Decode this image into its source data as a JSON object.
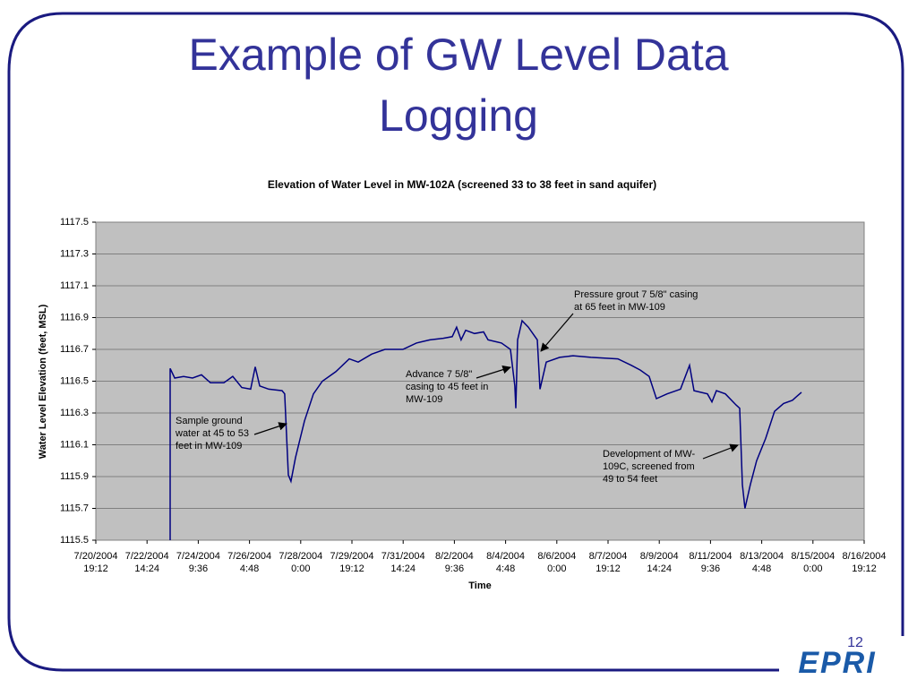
{
  "title": "Example of GW Level Data Logging",
  "page_number": "12",
  "logo": "EPRI",
  "chart_data": {
    "type": "line",
    "title": "Elevation of Water Level in MW-102A (screened 33 to 38 feet in sand aquifer)",
    "x_label": "Time",
    "y_label": "Water Level Elevation (feet, MSL)",
    "x": [
      "2004-07-23T09:54",
      "2004-07-23T09:54",
      "2004-07-23T13:42",
      "2004-07-23T21:12",
      "2004-07-24T04:48",
      "2004-07-24T12:18",
      "2004-07-24T19:54",
      "2004-07-25T07:12",
      "2004-07-25T14:42",
      "2004-07-25T22:18",
      "2004-07-26T05:48",
      "2004-07-26T09:36",
      "2004-07-26T13:24",
      "2004-07-26T21:00",
      "2004-07-27T08:18",
      "2004-07-27T10:30",
      "2004-07-27T13:36",
      "2004-07-27T15:48",
      "2004-07-27T19:36",
      "2004-07-28T03:12",
      "2004-07-28T10:42",
      "2004-07-28T18:18",
      "2004-07-29T05:36",
      "2004-07-29T16:54",
      "2004-07-30T00:30",
      "2004-07-30T11:48",
      "2004-07-30T23:06",
      "2004-07-31T14:12",
      "2004-08-01T01:36",
      "2004-08-01T12:54",
      "2004-08-02T00:12",
      "2004-08-02T07:48",
      "2004-08-02T11:30",
      "2004-08-02T15:18",
      "2004-08-02T19:06",
      "2004-08-03T02:36",
      "2004-08-03T10:12",
      "2004-08-03T14:00",
      "2004-08-04T01:18",
      "2004-08-04T08:54",
      "2004-08-04T12:36",
      "2004-08-04T13:24",
      "2004-08-04T14:54",
      "2004-08-04T18:42",
      "2004-08-05T00:00",
      "2004-08-05T07:30",
      "2004-08-05T09:48",
      "2004-08-05T15:06",
      "2004-08-06T02:24",
      "2004-08-06T13:42",
      "2004-08-07T04:48",
      "2004-08-08T03:30",
      "2004-08-08T14:48",
      "2004-08-08T22:24",
      "2004-08-09T05:54",
      "2004-08-09T12:00",
      "2004-08-09T21:00",
      "2004-08-10T08:18",
      "2004-08-10T15:54",
      "2004-08-10T19:42",
      "2004-08-11T07:00",
      "2004-08-11T10:48",
      "2004-08-11T14:36",
      "2004-08-11T22:06",
      "2004-08-12T07:12",
      "2004-08-12T10:12",
      "2004-08-12T12:30",
      "2004-08-12T14:42",
      "2004-08-12T19:12",
      "2004-08-13T00:30",
      "2004-08-13T08:06",
      "2004-08-13T15:36",
      "2004-08-13T23:12",
      "2004-08-14T06:42",
      "2004-08-14T14:18"
    ],
    "series": [
      {
        "name": "MW-102A",
        "color": "#000080",
        "values": [
          1115.5,
          1116.58,
          1116.52,
          1116.53,
          1116.52,
          1116.54,
          1116.49,
          1116.49,
          1116.53,
          1116.46,
          1116.45,
          1116.59,
          1116.47,
          1116.45,
          1116.44,
          1116.42,
          1115.91,
          1115.87,
          1116.02,
          1116.25,
          1116.42,
          1116.5,
          1116.56,
          1116.64,
          1116.62,
          1116.67,
          1116.7,
          1116.7,
          1116.74,
          1116.76,
          1116.77,
          1116.78,
          1116.84,
          1116.76,
          1116.82,
          1116.8,
          1116.81,
          1116.76,
          1116.74,
          1116.7,
          1116.47,
          1116.33,
          1116.76,
          1116.88,
          1116.84,
          1116.76,
          1116.45,
          1116.62,
          1116.65,
          1116.66,
          1116.65,
          1116.64,
          1116.6,
          1116.57,
          1116.53,
          1116.39,
          1116.42,
          1116.45,
          1116.6,
          1116.44,
          1116.42,
          1116.37,
          1116.44,
          1116.42,
          1116.35,
          1116.33,
          1115.85,
          1115.7,
          1115.85,
          1116.0,
          1116.14,
          1116.31,
          1116.36,
          1116.38,
          1116.43
        ]
      }
    ],
    "xlim": [
      "2004-07-20T19:12",
      "2004-08-16T19:12"
    ],
    "xticks": [
      {
        "value": "2004-07-20T19:12",
        "label": "7/20/2004 19:12"
      },
      {
        "value": "2004-07-22T14:24",
        "label": "7/22/2004 14:24"
      },
      {
        "value": "2004-07-24T09:36",
        "label": "7/24/2004 9:36"
      },
      {
        "value": "2004-07-26T04:48",
        "label": "7/26/2004 4:48"
      },
      {
        "value": "2004-07-28T00:00",
        "label": "7/28/2004 0:00"
      },
      {
        "value": "2004-07-29T19:12",
        "label": "7/29/2004 19:12"
      },
      {
        "value": "2004-07-31T14:24",
        "label": "7/31/2004 14:24"
      },
      {
        "value": "2004-08-02T09:36",
        "label": "8/2/2004 9:36"
      },
      {
        "value": "2004-08-04T04:48",
        "label": "8/4/2004 4:48"
      },
      {
        "value": "2004-08-06T00:00",
        "label": "8/6/2004 0:00"
      },
      {
        "value": "2004-08-07T19:12",
        "label": "8/7/2004 19:12"
      },
      {
        "value": "2004-08-09T14:24",
        "label": "8/9/2004 14:24"
      },
      {
        "value": "2004-08-11T09:36",
        "label": "8/11/2004 9:36"
      },
      {
        "value": "2004-08-13T04:48",
        "label": "8/13/2004 4:48"
      },
      {
        "value": "2004-08-15T00:00",
        "label": "8/15/2004 0:00"
      },
      {
        "value": "2004-08-16T19:12",
        "label": "8/16/2004 19:12"
      }
    ],
    "ylim": [
      1115.5,
      1117.5
    ],
    "yticks": [
      1115.5,
      1115.7,
      1115.9,
      1116.1,
      1116.3,
      1116.5,
      1116.7,
      1116.9,
      1117.1,
      1117.3,
      1117.5
    ],
    "grid": true,
    "annotations": [
      {
        "lines": [
          "Sample ground",
          "water at 45 to 53",
          "feet in MW-109"
        ]
      },
      {
        "lines": [
          "Advance 7 5/8\"",
          "casing to 45 feet in",
          "MW-109"
        ]
      },
      {
        "lines": [
          "Pressure grout 7 5/8\" casing",
          "at 65 feet in MW-109"
        ]
      },
      {
        "lines": [
          "Development of MW-",
          "109C, screened from",
          "49 to 54 feet"
        ]
      }
    ]
  }
}
